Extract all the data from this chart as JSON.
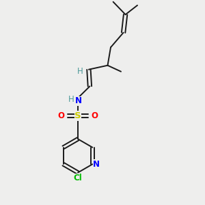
{
  "bg_color": "#eeeeed",
  "bond_color": "#1a1a1a",
  "N_color": "#0000ff",
  "S_color": "#cccc00",
  "O_color": "#ff0000",
  "Cl_color": "#00bb00",
  "H_color": "#4d9999",
  "fig_w": 3.0,
  "fig_h": 3.0,
  "dpi": 100,
  "xlim": [
    0,
    10
  ],
  "ylim": [
    0,
    10
  ]
}
